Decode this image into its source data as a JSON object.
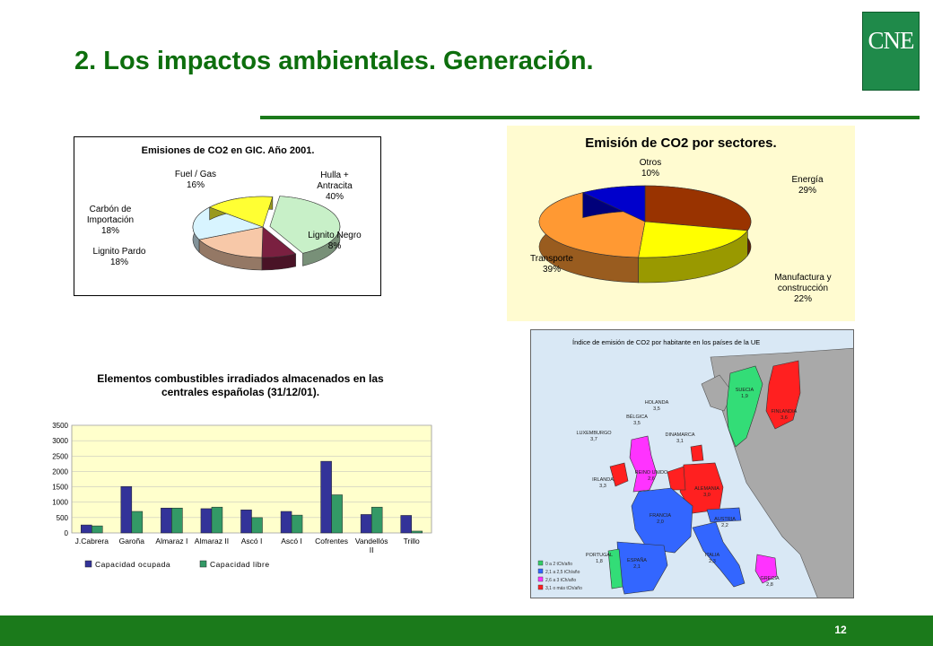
{
  "slide": {
    "title": "2. Los impactos ambientales. Generación.",
    "logo_text": "CNE",
    "page_number": "12"
  },
  "colors": {
    "brand_green": "#1b7a1b",
    "title_green": "#0d6e0d"
  },
  "chart_data": [
    {
      "type": "pie",
      "title": "Emisiones de CO2 en GIC. Año 2001.",
      "slices": [
        {
          "label": "Hulla + Antracita",
          "value": 40,
          "color": "#c8f0c8"
        },
        {
          "label": "Lignito Negro",
          "value": 8,
          "color": "#7a2040"
        },
        {
          "label": "Lignito Pardo",
          "value": 18,
          "color": "#f7c8a8"
        },
        {
          "label": "Carbón de Importación",
          "value": 18,
          "color": "#d8f4ff"
        },
        {
          "label": "Fuel / Gas",
          "value": 16,
          "color": "#ffff33"
        }
      ],
      "label_lines": [
        [
          "Hulla +",
          "Antracita",
          "40%"
        ],
        [
          "Lignito Negro",
          "8%"
        ],
        [
          "Lignito Pardo",
          "18%"
        ],
        [
          "Carbón de",
          "Importación",
          "18%"
        ],
        [
          "Fuel / Gas",
          "16%"
        ]
      ]
    },
    {
      "type": "pie",
      "title": "Emisión de CO2 por sectores.",
      "slices": [
        {
          "label": "Energía",
          "value": 29,
          "color": "#993300"
        },
        {
          "label": "Manufactura y construcción",
          "value": 22,
          "color": "#ffff00"
        },
        {
          "label": "Transporte",
          "value": 39,
          "color": "#ff9933"
        },
        {
          "label": "Otros",
          "value": 10,
          "color": "#0000cc"
        }
      ],
      "label_lines": [
        [
          "Energía",
          "29%"
        ],
        [
          "Manufactura y",
          "construcción",
          "22%"
        ],
        [
          "Transporte",
          "39%"
        ],
        [
          "Otros",
          "10%"
        ]
      ]
    },
    {
      "type": "bar",
      "title_lines": [
        "Elementos combustibles irradiados almacenados en las",
        "centrales españolas (31/12/01)."
      ],
      "categories": [
        "J.Cabrera",
        "Garoña",
        "Almaraz I",
        "Almaraz II",
        "Ascó I",
        "Ascó I",
        "Cofrentes",
        "Vandellós II",
        "Trillo"
      ],
      "category_lines": [
        [
          "J.Cabrera"
        ],
        [
          "Garoña"
        ],
        [
          "Almaraz I"
        ],
        [
          "Almaraz II"
        ],
        [
          "Ascó I"
        ],
        [
          "Ascó I"
        ],
        [
          "Cofrentes"
        ],
        [
          "Vandellós",
          "II"
        ],
        [
          "Trillo"
        ]
      ],
      "series": [
        {
          "name": "Capacidad ocupada",
          "color": "#333399",
          "values": [
            260,
            1510,
            810,
            790,
            750,
            700,
            2330,
            600,
            570
          ]
        },
        {
          "name": "Capacidad libre",
          "color": "#339966",
          "values": [
            230,
            700,
            810,
            840,
            500,
            580,
            1240,
            840,
            60
          ]
        }
      ],
      "ylim": [
        0,
        3500
      ],
      "yticks": [
        "0",
        "500",
        "1000",
        "1500",
        "2000",
        "2500",
        "3000",
        "3500"
      ],
      "grid": true,
      "legend": "bottom"
    }
  ],
  "map": {
    "title": "Índice de emisión de CO2 por habitante en los países de la UE",
    "countries": [
      {
        "name": "SUECIA",
        "value": "1,9"
      },
      {
        "name": "FINLANDIA",
        "value": "3,6"
      },
      {
        "name": "HOLANDA",
        "value": "3,5"
      },
      {
        "name": "BÉLGICA",
        "value": "3,5"
      },
      {
        "name": "LUXEMBURGO",
        "value": "3,7"
      },
      {
        "name": "DINAMARCA",
        "value": "3,1"
      },
      {
        "name": "REINO UNIDO",
        "value": "2,6"
      },
      {
        "name": "IRLANDA",
        "value": "3,3"
      },
      {
        "name": "ALEMANIA",
        "value": "3,0"
      },
      {
        "name": "FRANCIA",
        "value": "2,0"
      },
      {
        "name": "AUSTRIA",
        "value": "2,2"
      },
      {
        "name": "ESPAÑA",
        "value": "2,1"
      },
      {
        "name": "PORTUGAL",
        "value": "1,8"
      },
      {
        "name": "ITALIA",
        "value": "2,3"
      },
      {
        "name": "GRECIA",
        "value": "2,8"
      }
    ],
    "legend": [
      {
        "label": "0 a 2 tCh/año",
        "color": "#33cc66"
      },
      {
        "label": "2,1 a 2,5 tCh/año",
        "color": "#3366ff"
      },
      {
        "label": "2,6 a 3 tCh/año",
        "color": "#ff33ff"
      },
      {
        "label": "3,1 o más tCh/año",
        "color": "#ff2020"
      }
    ]
  }
}
